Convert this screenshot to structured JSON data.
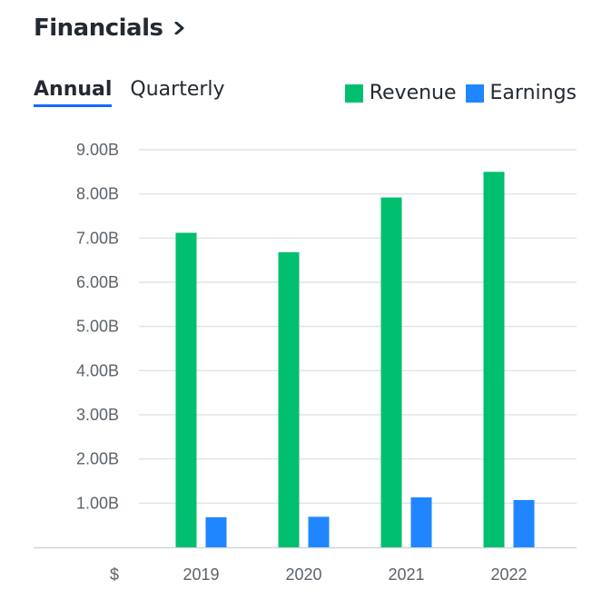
{
  "header": {
    "title": "Financials"
  },
  "tabs": [
    {
      "label": "Annual",
      "active": true
    },
    {
      "label": "Quarterly",
      "active": false
    }
  ],
  "legend": [
    {
      "label": "Revenue",
      "color": "#00bf6f"
    },
    {
      "label": "Earnings",
      "color": "#1f86ff"
    }
  ],
  "chart_data": {
    "type": "bar",
    "categories": [
      "2019",
      "2020",
      "2021",
      "2022"
    ],
    "series": [
      {
        "name": "Revenue",
        "color": "#00bf6f",
        "values": [
          7.12,
          6.68,
          7.92,
          8.5
        ]
      },
      {
        "name": "Earnings",
        "color": "#1f86ff",
        "values": [
          0.68,
          0.69,
          1.13,
          1.07
        ]
      }
    ],
    "y_ticks": [
      {
        "value": 1,
        "label": "1.00B"
      },
      {
        "value": 2,
        "label": "2.00B"
      },
      {
        "value": 3,
        "label": "3.00B"
      },
      {
        "value": 4,
        "label": "4.00B"
      },
      {
        "value": 5,
        "label": "5.00B"
      },
      {
        "value": 6,
        "label": "6.00B"
      },
      {
        "value": 7,
        "label": "7.00B"
      },
      {
        "value": 8,
        "label": "8.00B"
      },
      {
        "value": 9,
        "label": "9.00B"
      }
    ],
    "x_unit_label": "$",
    "ylim": [
      0,
      9
    ],
    "grid": true,
    "legend_position": "top-right"
  }
}
